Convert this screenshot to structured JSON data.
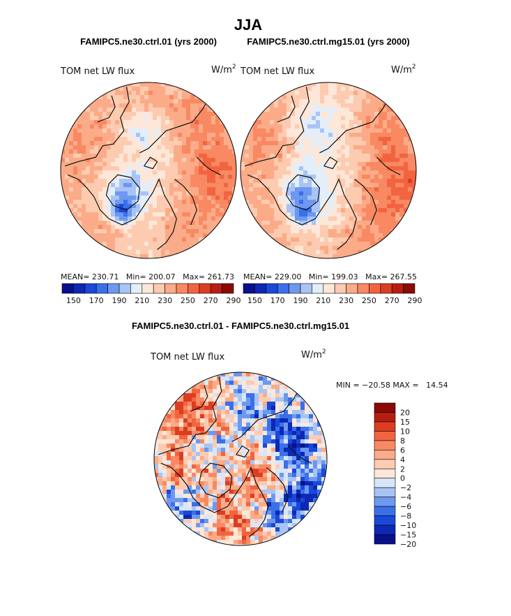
{
  "page": {
    "title": "JJA"
  },
  "colors": {
    "coast": "#111111",
    "circle_edge": "#000000"
  },
  "abs_palette": [
    "#08108c",
    "#0c28b4",
    "#1a48d8",
    "#3a70ea",
    "#6e98f0",
    "#a7c4f5",
    "#e3eef9",
    "#fde7d8",
    "#fdcbb0",
    "#fbab88",
    "#f88962",
    "#f26440",
    "#dc3d22",
    "#b81e10",
    "#8a0a06"
  ],
  "diff_palette": [
    "#08108c",
    "#0c28b4",
    "#1a48d8",
    "#3a70ea",
    "#6e98f0",
    "#a7c4f5",
    "#d8e6fa",
    "#fde7d8",
    "#fdcbb0",
    "#fbab88",
    "#f88962",
    "#f26440",
    "#dc3d22",
    "#b81e10",
    "#8a0a06"
  ],
  "panels": {
    "left": {
      "case": "FAMIPC5.ne30.ctrl.01 (yrs 2000)",
      "field": "TOM net LW flux",
      "units": "W/m",
      "units_sup": "2",
      "stats": "MEAN= 230.71   Min= 200.07   Max= 261.73",
      "colorbar_ticks": [
        "150",
        "170",
        "190",
        "210",
        "230",
        "250",
        "270",
        "290"
      ]
    },
    "right": {
      "case": "FAMIPC5.ne30.ctrl.mg15.01 (yrs 2000)",
      "field": "TOM net LW flux",
      "units": "W/m",
      "units_sup": "2",
      "stats": "MEAN= 229.00   Min= 199.03   Max= 267.55",
      "colorbar_ticks": [
        "150",
        "170",
        "190",
        "210",
        "230",
        "250",
        "270",
        "290"
      ]
    },
    "diff": {
      "title": "FAMIPC5.ne30.ctrl.01 - FAMIPC5.ne30.ctrl.mg15.01",
      "field": "TOM net LW flux",
      "units": "W/m",
      "units_sup": "2",
      "minmax": "MIN = −20.58 MAX =   14.54",
      "colorbar_labels": [
        "20",
        "15",
        "10",
        "8",
        "6",
        "4",
        "2",
        "0",
        "−2",
        "−4",
        "−6",
        "−8",
        "−10",
        "−15",
        "−20"
      ]
    }
  },
  "chart_data": [
    {
      "type": "heatmap",
      "projection": "north polar stereographic",
      "title": "FAMIPC5.ne30.ctrl.01 (yrs 2000)",
      "variable": "TOM net LW flux",
      "units": "W/m2",
      "mean": 230.71,
      "min": 200.07,
      "max": 261.73,
      "color_levels": [
        150,
        160,
        170,
        180,
        190,
        200,
        210,
        220,
        230,
        240,
        250,
        260,
        270,
        280,
        290
      ],
      "blobs": [
        {
          "x": -0.28,
          "y": 0.26,
          "v": 205,
          "r": 0.18
        },
        {
          "x": -0.3,
          "y": 0.48,
          "v": 200,
          "r": 0.1
        },
        {
          "x": 0.02,
          "y": 0.12,
          "v": 226,
          "r": 0.45
        },
        {
          "x": 0.75,
          "y": 0.15,
          "v": 262,
          "r": 0.32
        },
        {
          "x": 0.62,
          "y": -0.52,
          "v": 250,
          "r": 0.3
        },
        {
          "x": -0.72,
          "y": -0.38,
          "v": 250,
          "r": 0.3
        },
        {
          "x": -0.05,
          "y": -0.78,
          "v": 244,
          "r": 0.28
        },
        {
          "x": 0.38,
          "y": 0.72,
          "v": 248,
          "r": 0.22
        },
        {
          "x": -0.55,
          "y": 0.66,
          "v": 246,
          "r": 0.24
        },
        {
          "x": -0.05,
          "y": -0.45,
          "v": 216,
          "r": 0.18
        },
        {
          "x": 0.52,
          "y": -0.1,
          "v": 238,
          "r": 0.22
        },
        {
          "x": -0.7,
          "y": 0.1,
          "v": 242,
          "r": 0.22
        }
      ],
      "base": 236
    },
    {
      "type": "heatmap",
      "projection": "north polar stereographic",
      "title": "FAMIPC5.ne30.ctrl.mg15.01 (yrs 2000)",
      "variable": "TOM net LW flux",
      "units": "W/m2",
      "mean": 229.0,
      "min": 199.03,
      "max": 267.55,
      "color_levels": [
        150,
        160,
        170,
        180,
        190,
        200,
        210,
        220,
        230,
        240,
        250,
        260,
        270,
        280,
        290
      ],
      "blobs": [
        {
          "x": -0.28,
          "y": 0.26,
          "v": 203,
          "r": 0.2
        },
        {
          "x": -0.3,
          "y": 0.5,
          "v": 200,
          "r": 0.1
        },
        {
          "x": -0.15,
          "y": -0.52,
          "v": 212,
          "r": 0.22
        },
        {
          "x": 0.02,
          "y": 0.1,
          "v": 225,
          "r": 0.45
        },
        {
          "x": 0.8,
          "y": 0.2,
          "v": 266,
          "r": 0.34
        },
        {
          "x": 0.7,
          "y": -0.48,
          "v": 252,
          "r": 0.28
        },
        {
          "x": -0.72,
          "y": -0.38,
          "v": 250,
          "r": 0.3
        },
        {
          "x": 0.4,
          "y": 0.8,
          "v": 250,
          "r": 0.22
        },
        {
          "x": -0.62,
          "y": 0.62,
          "v": 246,
          "r": 0.24
        },
        {
          "x": 0.45,
          "y": -0.3,
          "v": 236,
          "r": 0.22
        },
        {
          "x": -0.7,
          "y": 0.1,
          "v": 242,
          "r": 0.22
        }
      ],
      "base": 235
    },
    {
      "type": "heatmap",
      "projection": "north polar stereographic",
      "title": "FAMIPC5.ne30.ctrl.01 - FAMIPC5.ne30.ctrl.mg15.01",
      "variable": "TOM net LW flux difference",
      "units": "W/m2",
      "min": -20.58,
      "max": 14.54,
      "color_levels": [
        -20,
        -15,
        -10,
        -8,
        -6,
        -4,
        -2,
        0,
        2,
        4,
        6,
        8,
        10,
        15,
        20
      ],
      "blobs": [
        {
          "x": -0.55,
          "y": -0.55,
          "v": 10,
          "r": 0.22
        },
        {
          "x": -0.7,
          "y": 0.1,
          "v": 8,
          "r": 0.2
        },
        {
          "x": 0.35,
          "y": 0.18,
          "v": 9,
          "r": 0.24
        },
        {
          "x": 0.55,
          "y": -0.2,
          "v": -12,
          "r": 0.22
        },
        {
          "x": 0.45,
          "y": 0.62,
          "v": -8,
          "r": 0.22
        },
        {
          "x": -0.7,
          "y": 0.55,
          "v": -6,
          "r": 0.2
        },
        {
          "x": 0.15,
          "y": 0.78,
          "v": 7,
          "r": 0.18
        },
        {
          "x": -0.1,
          "y": -0.1,
          "v": 3,
          "r": 0.3
        },
        {
          "x": -0.35,
          "y": -0.15,
          "v": -5,
          "r": 0.16
        },
        {
          "x": 0.75,
          "y": 0.35,
          "v": -9,
          "r": 0.18
        },
        {
          "x": -0.2,
          "y": 0.55,
          "v": 4,
          "r": 0.18
        },
        {
          "x": 0.1,
          "y": -0.6,
          "v": -4,
          "r": 0.2
        }
      ],
      "base": 1
    }
  ]
}
